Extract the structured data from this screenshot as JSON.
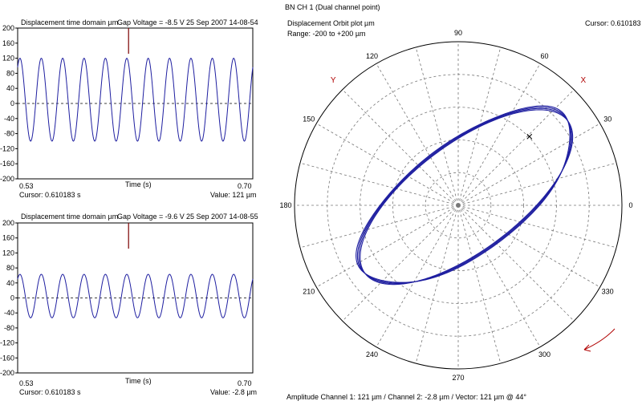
{
  "window_title": "BN CH 1 (Dual channel point)",
  "colors": {
    "trace": "#1e1ea0",
    "marker": "#7a0000",
    "grid": "#777777",
    "axis_x_y": "#b00000"
  },
  "top_panel": {
    "title": "Displacement time domain µm",
    "gap_voltage": "Gap Voltage = -8.5 V",
    "timestamp": "25 Sep 2007 14-08-54",
    "x_start": "0.53",
    "x_end": "0.70",
    "xlabel": "Time (s)",
    "cursor": "Cursor: 0.610183 s",
    "value": "Value: 121 µm"
  },
  "bottom_panel": {
    "title": "Displacement time domain µm",
    "gap_voltage": "Gap Voltage = -9.6 V",
    "timestamp": "25 Sep 2007 14-08-55",
    "x_start": "0.53",
    "x_end": "0.70",
    "xlabel": "Time (s)",
    "cursor": "Cursor: 0.610183 s",
    "value": "Value: -2.8 µm"
  },
  "orbit_panel": {
    "title": "Displacement Orbit plot µm",
    "range": "Range: -200 to +200 µm",
    "cursor": "Cursor: 0.610183 s",
    "angle_labels": [
      "0",
      "30",
      "60",
      "90",
      "120",
      "150",
      "180",
      "210",
      "240",
      "270",
      "300",
      "330"
    ],
    "x_probe": "X",
    "y_probe": "Y",
    "footer": "Amplitude Channel 1: 121 µm / Channel 2: -2.8 µm / Vector: 121 µm @ 44°"
  },
  "chart_data": [
    {
      "type": "line",
      "title": "Displacement time domain µm",
      "xlabel": "Time (s)",
      "ylabel": "",
      "xlim": [
        0.53,
        0.7
      ],
      "ylim": [
        -200,
        200
      ],
      "yticks": [
        200,
        160,
        120,
        80,
        40,
        0,
        -40,
        -80,
        -120,
        -160,
        -200
      ],
      "cycles": 11,
      "amplitude": 110,
      "offset": 10,
      "cursor_x": 0.610183,
      "series": [
        {
          "values_peak": 121,
          "values_trough": -100
        }
      ]
    },
    {
      "type": "line",
      "title": "Displacement time domain µm",
      "xlabel": "Time (s)",
      "ylabel": "",
      "xlim": [
        0.53,
        0.7
      ],
      "ylim": [
        -200,
        200
      ],
      "yticks": [
        200,
        160,
        120,
        80,
        40,
        0,
        -40,
        -80,
        -120,
        -160,
        -200
      ],
      "cycles": 11,
      "amplitude": 58,
      "offset": 5,
      "cursor_x": 0.610183,
      "series": [
        {
          "values_peak": 63,
          "values_trough": -53
        }
      ]
    },
    {
      "type": "scatter",
      "title": "Displacement Orbit plot µm",
      "range_um": [
        -200,
        200
      ],
      "angles_deg": [
        0,
        30,
        60,
        90,
        120,
        150,
        180,
        210,
        240,
        270,
        300,
        330
      ],
      "orbit": {
        "major_axis_um": 155,
        "minor_axis_um": 65,
        "major_angle_deg": 37,
        "center_um": [
          10,
          10
        ]
      },
      "cursor_vector": {
        "amplitude_um": 121,
        "angle_deg": 44
      }
    }
  ]
}
